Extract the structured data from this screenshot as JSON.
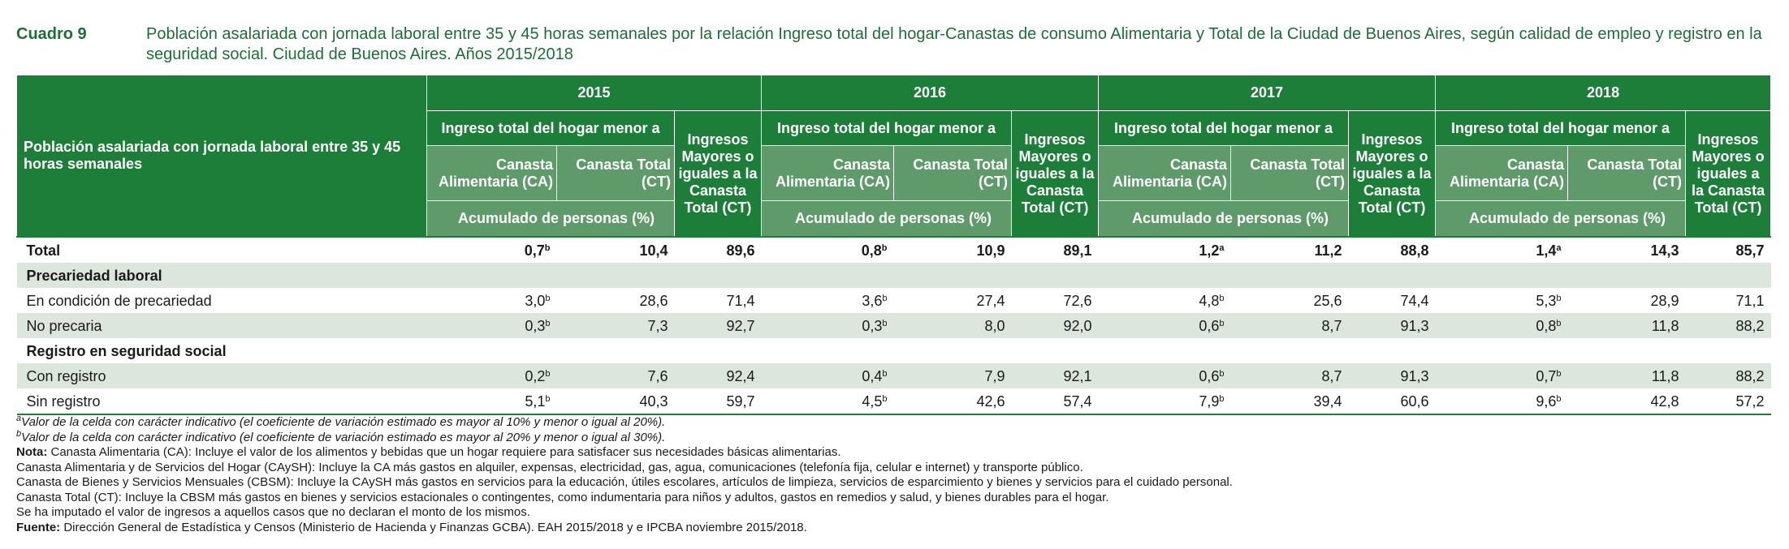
{
  "caption": {
    "label": "Cuadro 9",
    "title": "Población asalariada con jornada laboral entre 35 y 45 horas semanales por la relación Ingreso total del hogar-Canastas de consumo Alimentaria y Total de la Ciudad de Buenos Aires, según calidad de empleo y registro en la seguridad social. Ciudad de Buenos Aires. Años 2015/2018"
  },
  "header": {
    "row_label": "Población asalariada con jornada laboral entre 35 y 45 horas semanales",
    "years": [
      "2015",
      "2016",
      "2017",
      "2018"
    ],
    "ingreso_menor": "Ingreso total del hogar menor a",
    "mayores": "Ingresos Mayores o iguales a la Canasta Total  (CT)",
    "ca": "Canasta Alimentaria (CA)",
    "ct": "Canasta Total (CT)",
    "acumulado": "Acumulado de personas (%)"
  },
  "rows": [
    {
      "label": "Total",
      "type": "total",
      "cells": [
        [
          "0,7",
          "b"
        ],
        [
          "10,4",
          ""
        ],
        [
          "89,6",
          ""
        ],
        [
          "0,8",
          "b"
        ],
        [
          "10,9",
          ""
        ],
        [
          "89,1",
          ""
        ],
        [
          "1,2",
          "a"
        ],
        [
          "11,2",
          ""
        ],
        [
          "88,8",
          ""
        ],
        [
          "1,4",
          "a"
        ],
        [
          "14,3",
          ""
        ],
        [
          "85,7",
          ""
        ]
      ]
    },
    {
      "label": "Precariedad laboral",
      "type": "section"
    },
    {
      "label": "En condición de precariedad",
      "type": "data",
      "cells": [
        [
          "3,0",
          "b"
        ],
        [
          "28,6",
          ""
        ],
        [
          "71,4",
          ""
        ],
        [
          "3,6",
          "b"
        ],
        [
          "27,4",
          ""
        ],
        [
          "72,6",
          ""
        ],
        [
          "4,8",
          "b"
        ],
        [
          "25,6",
          ""
        ],
        [
          "74,4",
          ""
        ],
        [
          "5,3",
          "b"
        ],
        [
          "28,9",
          ""
        ],
        [
          "71,1",
          ""
        ]
      ]
    },
    {
      "label": "No precaria",
      "type": "data",
      "cells": [
        [
          "0,3",
          "b"
        ],
        [
          "7,3",
          ""
        ],
        [
          "92,7",
          ""
        ],
        [
          "0,3",
          "b"
        ],
        [
          "8,0",
          ""
        ],
        [
          "92,0",
          ""
        ],
        [
          "0,6",
          "b"
        ],
        [
          "8,7",
          ""
        ],
        [
          "91,3",
          ""
        ],
        [
          "0,8",
          "b"
        ],
        [
          "11,8",
          ""
        ],
        [
          "88,2",
          ""
        ]
      ]
    },
    {
      "label": "Registro en seguridad social",
      "type": "section"
    },
    {
      "label": "Con registro",
      "type": "data",
      "cells": [
        [
          "0,2",
          "b"
        ],
        [
          "7,6",
          ""
        ],
        [
          "92,4",
          ""
        ],
        [
          "0,4",
          "b"
        ],
        [
          "7,9",
          ""
        ],
        [
          "92,1",
          ""
        ],
        [
          "0,6",
          "b"
        ],
        [
          "8,7",
          ""
        ],
        [
          "91,3",
          ""
        ],
        [
          "0,7",
          "b"
        ],
        [
          "11,8",
          ""
        ],
        [
          "88,2",
          ""
        ]
      ]
    },
    {
      "label": "Sin registro",
      "type": "data",
      "cells": [
        [
          "5,1",
          "b"
        ],
        [
          "40,3",
          ""
        ],
        [
          "59,7",
          ""
        ],
        [
          "4,5",
          "b"
        ],
        [
          "42,6",
          ""
        ],
        [
          "57,4",
          ""
        ],
        [
          "7,9",
          "b"
        ],
        [
          "39,4",
          ""
        ],
        [
          "60,6",
          ""
        ],
        [
          "9,6",
          "b"
        ],
        [
          "42,8",
          ""
        ],
        [
          "57,2",
          ""
        ]
      ]
    }
  ],
  "notes": {
    "a_mark": "a",
    "a_text": "Valor de la celda con carácter indicativo (el coeficiente de variación estimado es mayor al 10% y menor o igual al 20%).",
    "b_mark": "b",
    "b_text": "Valor de la celda con carácter indicativo (el coeficiente de variación estimado es mayor al 20% y menor o igual al 30%).",
    "nota_label": "Nota:",
    "nota_text": "Canasta Alimentaria (CA): Incluye el valor de los alimentos y bebidas que un hogar requiere para satisfacer sus necesidades básicas alimentarias.",
    "line_caysh": "Canasta Alimentaria y de Servicios del Hogar (CAySH): Incluye la CA más gastos en alquiler, expensas, electricidad, gas, agua, comunicaciones (telefonía fija, celular e internet) y transporte público.",
    "line_cbsm": "Canasta de Bienes y Servicios Mensuales (CBSM): Incluye la CAySH más gastos en servicios para la educación, útiles escolares, artículos de limpieza, servicios de esparcimiento y bienes y servicios para el cuidado personal.",
    "line_ct": "Canasta Total (CT): Incluye la CBSM más gastos en bienes y servicios estacionales o contingentes, como indumentaria para niños y adultos, gastos en remedios y salud, y bienes durables para el hogar.",
    "line_imputado": "Se ha imputado el valor de ingresos a aquellos casos que no declaran el monto de los mismos.",
    "fuente_label": "Fuente:",
    "fuente_text": "Dirección General de Estadística y Censos (Ministerio de Hacienda y Finanzas GCBA). EAH 2015/2018 y e IPCBA noviembre 2015/2018."
  }
}
